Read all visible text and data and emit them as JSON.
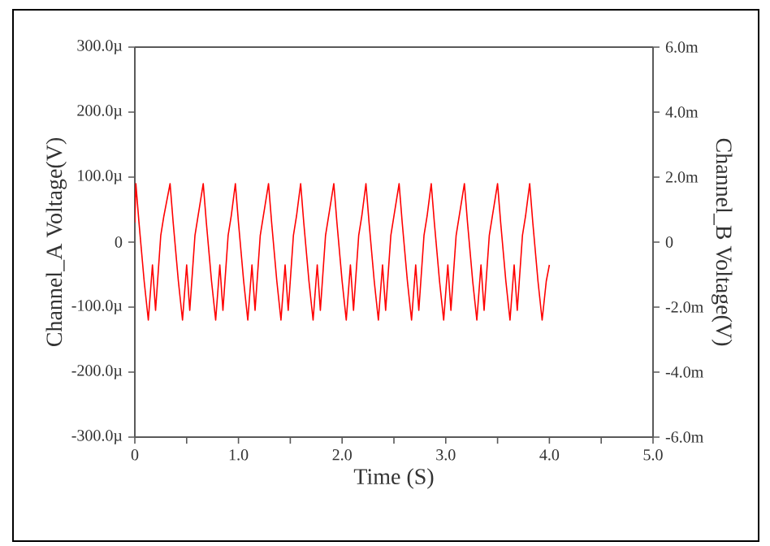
{
  "chart_data": {
    "type": "line",
    "xlabel": "Time (S)",
    "ylabel": "Channel_A Voltage(V)",
    "y2label": "Channel_B Voltage(V)",
    "xlim": [
      0,
      5
    ],
    "xticks": [
      0,
      {
        "value": 0.5,
        "label": null
      },
      {
        "value": 1,
        "label": "1.0"
      },
      {
        "value": 1.5,
        "label": null
      },
      {
        "value": 2,
        "label": "2.0"
      },
      {
        "value": 2.5,
        "label": null
      },
      {
        "value": 3,
        "label": "3.0"
      },
      {
        "value": 3.5,
        "label": null
      },
      {
        "value": 4,
        "label": "4.0"
      },
      {
        "value": 4.5,
        "label": null
      },
      {
        "value": 5,
        "label": "5.0"
      }
    ],
    "ylim": [
      -300,
      300
    ],
    "yticks": [
      {
        "value": -300,
        "label": "-300.0µ"
      },
      {
        "value": -200,
        "label": "-200.0µ"
      },
      {
        "value": -100,
        "label": "-100.0µ"
      },
      0,
      {
        "value": 100,
        "label": "100.0µ"
      },
      {
        "value": 200,
        "label": "200.0µ"
      },
      {
        "value": 300,
        "label": "300.0µ"
      }
    ],
    "y2lim": [
      -6,
      6
    ],
    "y2ticks": [
      {
        "value": -6,
        "label": "-6.0m"
      },
      {
        "value": -4,
        "label": "-4.0m"
      },
      {
        "value": -2,
        "label": "-2.0m"
      },
      0,
      {
        "value": 2,
        "label": "2.0m"
      },
      {
        "value": 4,
        "label": "4.0m"
      },
      {
        "value": 6,
        "label": "6.0m"
      }
    ],
    "series": [
      {
        "color": "#ff0000",
        "x": [
          0,
          0.01,
          0.04,
          0.09,
          0.13,
          0.17,
          0.2,
          0.25,
          0.28,
          0.34,
          0.37,
          0.42,
          0.46,
          0.5,
          0.53,
          0.58,
          0.61,
          0.66,
          0.69,
          0.74,
          0.78,
          0.82,
          0.85,
          0.9,
          0.93,
          0.97,
          1.0,
          1.05,
          1.09,
          1.13,
          1.16,
          1.21,
          1.24,
          1.29,
          1.32,
          1.37,
          1.41,
          1.45,
          1.48,
          1.53,
          1.56,
          1.6,
          1.63,
          1.68,
          1.72,
          1.76,
          1.79,
          1.84,
          1.87,
          1.92,
          1.95,
          2.0,
          2.04,
          2.08,
          2.11,
          2.16,
          2.19,
          2.23,
          2.26,
          2.31,
          2.35,
          2.39,
          2.42,
          2.47,
          2.5,
          2.55,
          2.58,
          2.63,
          2.67,
          2.71,
          2.74,
          2.79,
          2.82,
          2.86,
          2.89,
          2.94,
          2.98,
          3.02,
          3.05,
          3.1,
          3.13,
          3.18,
          3.21,
          3.26,
          3.3,
          3.34,
          3.37,
          3.42,
          3.45,
          3.5,
          3.53,
          3.58,
          3.62,
          3.66,
          3.69,
          3.74,
          3.77,
          3.81,
          3.84,
          3.89,
          3.93,
          3.97,
          4.0
        ],
        "values": [
          30,
          90,
          30,
          -60,
          -120,
          -35,
          -105,
          10,
          40,
          90,
          30,
          -60,
          -120,
          -35,
          -105,
          10,
          40,
          90,
          30,
          -60,
          -120,
          -35,
          -105,
          10,
          40,
          90,
          30,
          -60,
          -120,
          -35,
          -105,
          10,
          40,
          90,
          30,
          -60,
          -120,
          -35,
          -105,
          10,
          40,
          90,
          30,
          -60,
          -120,
          -35,
          -105,
          10,
          40,
          90,
          30,
          -60,
          -120,
          -35,
          -105,
          10,
          40,
          90,
          30,
          -60,
          -120,
          -35,
          -105,
          10,
          40,
          90,
          30,
          -60,
          -120,
          -35,
          -105,
          10,
          40,
          90,
          30,
          -60,
          -120,
          -35,
          -105,
          10,
          40,
          90,
          30,
          -60,
          -120,
          -35,
          -105,
          10,
          40,
          90,
          30,
          -60,
          -120,
          -35,
          -105,
          10,
          40,
          90,
          30,
          -60,
          -120,
          -60,
          -35
        ]
      }
    ]
  }
}
